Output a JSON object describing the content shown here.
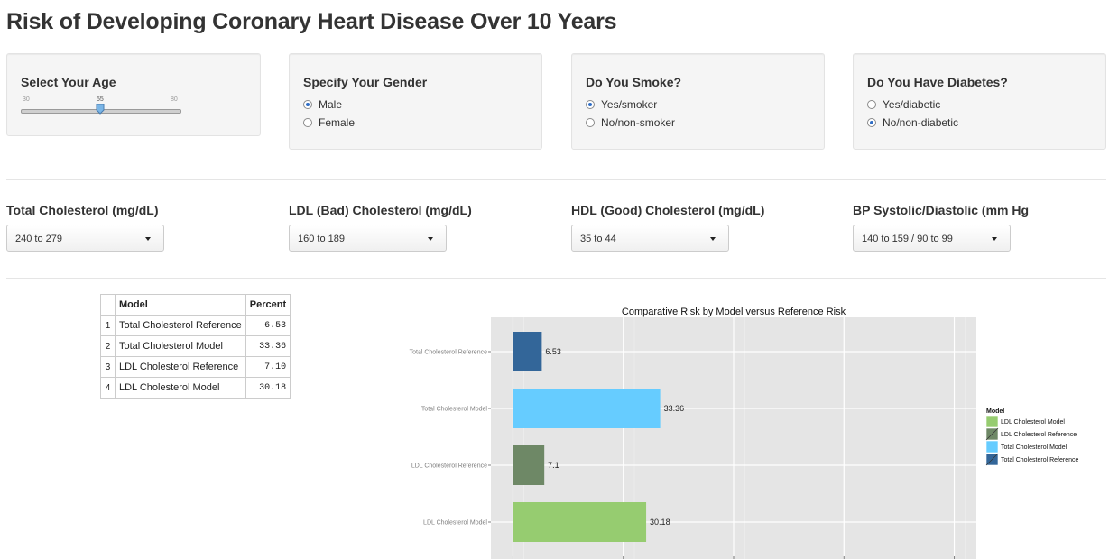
{
  "page": {
    "title": "Risk of Developing Coronary Heart Disease Over 10 Years"
  },
  "age": {
    "label": "Select Your Age",
    "min": 30,
    "max": 80,
    "value": 55,
    "min_label": "30",
    "value_label": "55",
    "max_label": "80"
  },
  "gender": {
    "label": "Specify Your Gender",
    "options": [
      "Male",
      "Female"
    ],
    "selected": "Male"
  },
  "smoke": {
    "label": "Do You Smoke?",
    "options": [
      "Yes/smoker",
      "No/non-smoker"
    ],
    "selected": "Yes/smoker"
  },
  "diabetes": {
    "label": "Do You Have Diabetes?",
    "options": [
      "Yes/diabetic",
      "No/non-diabetic"
    ],
    "selected": "No/non-diabetic"
  },
  "dropdowns": [
    {
      "label": "Total Cholesterol (mg/dL)",
      "value": "240 to 279"
    },
    {
      "label": "LDL (Bad) Cholesterol (mg/dL)",
      "value": "160 to 189"
    },
    {
      "label": "HDL (Good) Cholesterol (mg/dL)",
      "value": "35 to 44"
    },
    {
      "label": "BP Systolic/Diastolic (mm Hg",
      "value": "140 to 159 / 90 to 99"
    }
  ],
  "table": {
    "headers": [
      "",
      "Model",
      "Percent"
    ],
    "rows": [
      {
        "index": "1",
        "model": "Total Cholesterol Reference",
        "percent": "6.53"
      },
      {
        "index": "2",
        "model": "Total Cholesterol Model",
        "percent": "33.36"
      },
      {
        "index": "3",
        "model": "LDL Cholesterol Reference",
        "percent": "7.10"
      },
      {
        "index": "4",
        "model": "LDL Cholesterol Model",
        "percent": "30.18"
      }
    ]
  },
  "chart_data": {
    "type": "bar",
    "orientation": "horizontal",
    "title": "Comparative Risk by Model versus Reference Risk",
    "xlabel": "",
    "ylabel": "",
    "categories": [
      "Total Cholesterol Reference",
      "Total Cholesterol Model",
      "LDL Cholesterol Reference",
      "LDL Cholesterol Model"
    ],
    "values": [
      6.53,
      33.36,
      7.1,
      30.18
    ],
    "data_labels": [
      "6.53",
      "33.36",
      "7.1",
      "30.18"
    ],
    "colors": [
      "#336699",
      "#66ccff",
      "#6e8866",
      "#96cc70"
    ],
    "xlim": [
      -5,
      105
    ],
    "grid": true,
    "panel_background": "#e5e5e5",
    "legend": {
      "title": "Model",
      "position": "right",
      "entries": [
        {
          "name": "LDL Cholesterol Model",
          "color": "#96cc70"
        },
        {
          "name": "LDL Cholesterol Reference",
          "color": "#6e8866"
        },
        {
          "name": "Total Cholesterol Model",
          "color": "#66ccff"
        },
        {
          "name": "Total Cholesterol Reference",
          "color": "#336699"
        }
      ]
    }
  }
}
